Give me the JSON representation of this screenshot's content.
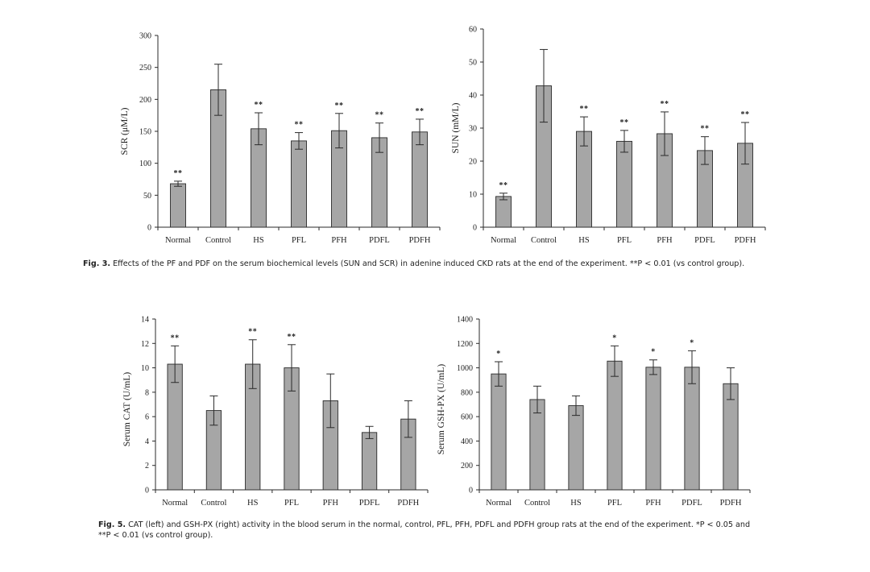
{
  "chart_data": [
    {
      "type": "bar",
      "id": "scr",
      "ylabel": "SCR (μM/L)",
      "ylim": [
        0,
        300
      ],
      "yticks": [
        0,
        50,
        100,
        150,
        200,
        250,
        300
      ],
      "categories": [
        "Normal",
        "Control",
        "HS",
        "PFL",
        "PFH",
        "PDFL",
        "PDFH"
      ],
      "values": [
        68,
        215,
        154,
        135,
        151,
        140,
        149
      ],
      "errors": [
        4,
        40,
        25,
        13,
        27,
        23,
        20
      ],
      "significance": [
        "**",
        "",
        "**",
        "**",
        "**",
        "**",
        "**"
      ]
    },
    {
      "type": "bar",
      "id": "sun",
      "ylabel": "SUN (mM/L)",
      "ylim": [
        0,
        60
      ],
      "yticks": [
        0,
        10,
        20,
        30,
        40,
        50,
        60
      ],
      "categories": [
        "Normal",
        "Control",
        "HS",
        "PFL",
        "PFH",
        "PDFL",
        "PDFH"
      ],
      "values": [
        9.3,
        42.8,
        29.0,
        26.0,
        28.3,
        23.2,
        25.4
      ],
      "errors": [
        1,
        11,
        4.4,
        3.3,
        6.6,
        4.2,
        6.3
      ],
      "significance": [
        "**",
        "",
        "**",
        "**",
        "**",
        "**",
        "**"
      ]
    },
    {
      "type": "bar",
      "id": "cat",
      "ylabel": "Serum CAT (U/mL)",
      "ylim": [
        0,
        14
      ],
      "yticks": [
        0,
        2,
        4,
        6,
        8,
        10,
        12,
        14
      ],
      "categories": [
        "Normal",
        "Control",
        "HS",
        "PFL",
        "PFH",
        "PDFL",
        "PDFH"
      ],
      "values": [
        10.3,
        6.5,
        10.3,
        10.0,
        7.3,
        4.7,
        5.8
      ],
      "errors": [
        1.5,
        1.2,
        2.0,
        1.9,
        2.2,
        0.5,
        1.5
      ],
      "significance": [
        "**",
        "",
        "**",
        "**",
        "",
        "",
        ""
      ]
    },
    {
      "type": "bar",
      "id": "gshpx",
      "ylabel": "Serum GSH-PX (U/mL)",
      "ylim": [
        0,
        1400
      ],
      "yticks": [
        0,
        200,
        400,
        600,
        800,
        1000,
        1200,
        1400
      ],
      "categories": [
        "Normal",
        "Control",
        "HS",
        "PFL",
        "PFH",
        "PDFL",
        "PDFH"
      ],
      "values": [
        950,
        740,
        690,
        1055,
        1005,
        1005,
        870
      ],
      "errors": [
        100,
        110,
        80,
        125,
        60,
        135,
        130
      ],
      "significance": [
        "*",
        "",
        "",
        "*",
        "*",
        "*",
        ""
      ]
    }
  ],
  "captions": {
    "fig3_label": "Fig. 3.",
    "fig3_text": "Effects of the PF and PDF on the serum biochemical levels (SUN and SCR) in adenine induced CKD rats at the end of the experiment. **P < 0.01 (vs control group).",
    "fig5_label": "Fig. 5.",
    "fig5_line1": "CAT (left) and GSH-PX (right) activity in the blood serum in the normal, control, PFL, PFH, PDFL and PDFH group rats at the end of the experiment. *P < 0.05 and",
    "fig5_line2": "**P < 0.01 (vs control group)."
  }
}
